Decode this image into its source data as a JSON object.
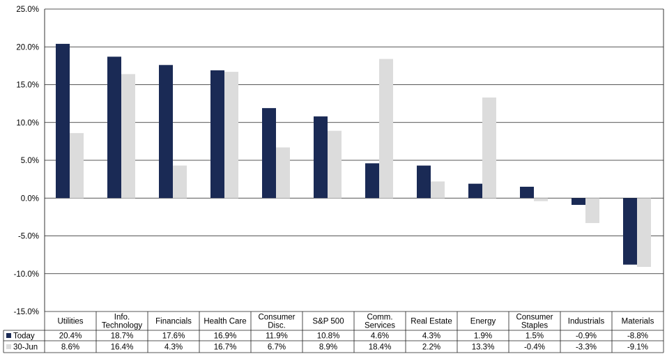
{
  "chart_data": {
    "type": "bar",
    "categories": [
      [
        "Utilities"
      ],
      [
        "Info.",
        "Technology"
      ],
      [
        "Financials"
      ],
      [
        "Health Care"
      ],
      [
        "Consumer",
        "Disc."
      ],
      [
        "S&P 500"
      ],
      [
        "Comm.",
        "Services"
      ],
      [
        "Real Estate"
      ],
      [
        "Energy"
      ],
      [
        "Consumer",
        "Staples"
      ],
      [
        "Industrials"
      ],
      [
        "Materials"
      ]
    ],
    "series": [
      {
        "name": "Today",
        "color": "#1a2a55",
        "values": [
          20.4,
          18.7,
          17.6,
          16.9,
          11.9,
          10.8,
          4.6,
          4.3,
          1.9,
          1.5,
          -0.9,
          -8.8
        ],
        "labels": [
          "20.4%",
          "18.7%",
          "17.6%",
          "16.9%",
          "11.9%",
          "10.8%",
          "4.6%",
          "4.3%",
          "1.9%",
          "1.5%",
          "-0.9%",
          "-8.8%"
        ]
      },
      {
        "name": "30-Jun",
        "color": "#dcdcdc",
        "values": [
          8.6,
          16.4,
          4.3,
          16.7,
          6.7,
          8.9,
          18.4,
          2.2,
          13.3,
          -0.4,
          -3.3,
          -9.1
        ],
        "labels": [
          "8.6%",
          "16.4%",
          "4.3%",
          "16.7%",
          "6.7%",
          "8.9%",
          "18.4%",
          "2.2%",
          "13.3%",
          "-0.4%",
          "-3.3%",
          "-9.1%"
        ]
      }
    ],
    "ylim": [
      -15,
      25
    ],
    "ytick_labels": [
      "25.0%",
      "20.0%",
      "15.0%",
      "10.0%",
      "5.0%",
      "0.0%",
      "-5.0%",
      "-10.0%",
      "-15.0%"
    ],
    "grid": true,
    "legend": "table-bottom"
  }
}
